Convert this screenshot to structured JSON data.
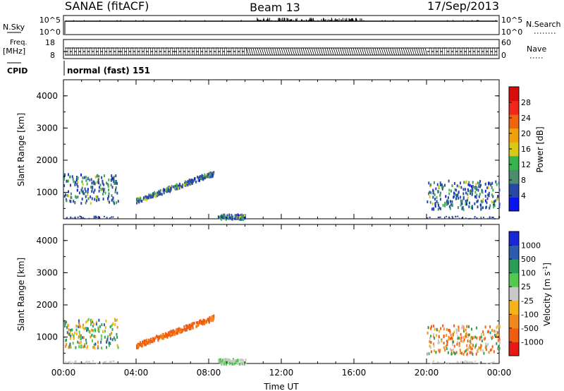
{
  "header": {
    "station": "SANAE (fitACF)",
    "beam": "Beam 13",
    "date": "17/Sep/2013"
  },
  "panels": {
    "nsky": {
      "label": "N.Sky",
      "right_label": "N.Search",
      "ticks_left": [
        "10^5",
        "10^0"
      ],
      "ticks_right": [
        "10^5",
        "10^0"
      ]
    },
    "freq": {
      "label_top": "Freq.",
      "label_unit": "[MHz]",
      "right_label": "Nave",
      "ticks_left": [
        "18",
        "8"
      ],
      "ticks_right": [
        "60",
        "0"
      ]
    },
    "cpid": {
      "label": "CPID",
      "value": "normal (fast) 151"
    }
  },
  "colors": {
    "power_scale": [
      "#0a14f0",
      "#2848a8",
      "#4c8c6c",
      "#38b44c",
      "#d8c818",
      "#f0a00c",
      "#f06410",
      "#f0281c",
      "#d80c0c"
    ],
    "velocity_scale": [
      "#e81818",
      "#f05c10",
      "#f0881c",
      "#f4b418",
      "#c8c8c8",
      "#54c850",
      "#2c9c58",
      "#2c5cb0",
      "#1828d8"
    ]
  },
  "chart_data": [
    {
      "type": "heatmap",
      "title": "",
      "xlabel": "",
      "ylabel": "Slant Range [km]",
      "xlim": [
        "00:00",
        "24:00"
      ],
      "ylim": [
        180,
        4500
      ],
      "x_tick_labels": [],
      "y_ticks": [
        1000,
        2000,
        3000,
        4000
      ],
      "colorbar": {
        "label": "Power [dB]",
        "ticks": [
          4,
          8,
          12,
          16,
          20,
          24,
          28
        ],
        "range": [
          0,
          32
        ]
      },
      "echo_regions": [
        {
          "t_start": "00:00",
          "t_end": "03:00",
          "range_km": [
            700,
            1600
          ],
          "dominant": "4-12 dB"
        },
        {
          "t_start": "04:00",
          "t_end": "08:15",
          "range_km": [
            700,
            1650
          ],
          "dominant": "4-8 dB"
        },
        {
          "t_start": "08:30",
          "t_end": "10:00",
          "range_km": [
            200,
            350
          ],
          "dominant": "4-12 dB"
        },
        {
          "t_start": "20:00",
          "t_end": "24:00",
          "range_km": [
            500,
            1400
          ],
          "dominant": "4-12 dB"
        }
      ]
    },
    {
      "type": "heatmap",
      "title": "",
      "xlabel": "Time UT",
      "ylabel": "Slant Range [km]",
      "xlim": [
        "00:00",
        "24:00"
      ],
      "ylim": [
        180,
        4500
      ],
      "x_tick_labels": [
        "00:00",
        "04:00",
        "08:00",
        "12:00",
        "16:00",
        "20:00",
        "00:00"
      ],
      "y_ticks": [
        1000,
        2000,
        3000,
        4000
      ],
      "colorbar": {
        "label": "Velocity [m s^-1]",
        "ticks": [
          "1000",
          "500",
          "100",
          "25",
          "-25",
          "-100",
          "-500",
          "-1000"
        ]
      },
      "echo_regions": [
        {
          "t_start": "00:00",
          "t_end": "03:00",
          "range_km": [
            700,
            1600
          ],
          "dominant": "mixed"
        },
        {
          "t_start": "04:00",
          "t_end": "08:15",
          "range_km": [
            700,
            1650
          ],
          "dominant": "-100 to -500"
        },
        {
          "t_start": "08:30",
          "t_end": "10:00",
          "range_km": [
            200,
            350
          ],
          "dominant": "-25 to 25"
        },
        {
          "t_start": "20:00",
          "t_end": "24:00",
          "range_km": [
            500,
            1400
          ],
          "dominant": "-100 to -500"
        }
      ]
    }
  ]
}
